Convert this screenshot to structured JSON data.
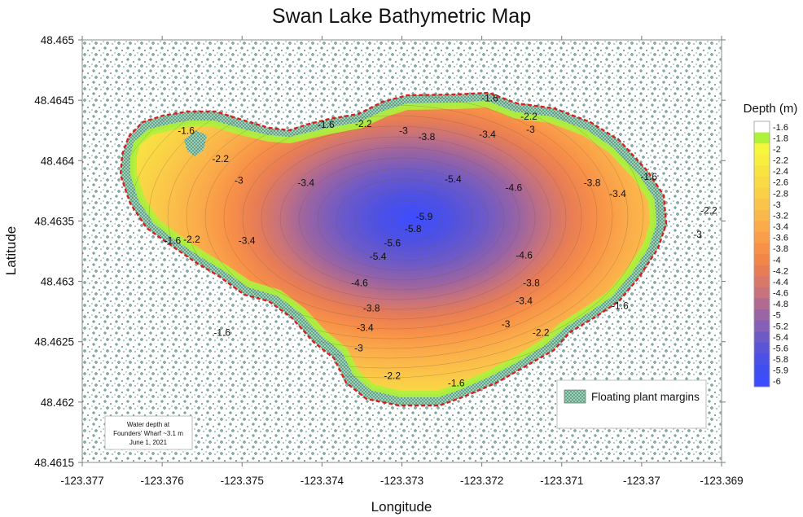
{
  "chart_data": {
    "type": "heatmap",
    "title": "Swan Lake Bathymetric Map",
    "xlabel": "Longitude",
    "ylabel": "Latitude",
    "xlim": [
      -123.377,
      -123.369
    ],
    "ylim": [
      48.4615,
      48.465
    ],
    "x_ticks": [
      "-123.377",
      "-123.376",
      "-123.375",
      "-123.374",
      "-123.373",
      "-123.372",
      "-123.371",
      "-123.37",
      "-123.369"
    ],
    "y_ticks": [
      "48.4615",
      "48.462",
      "48.4625",
      "48.463",
      "48.4635",
      "48.464",
      "48.4645",
      "48.465"
    ],
    "colorbar": {
      "title": "Depth (m)",
      "levels": [
        "-1.6",
        "-1.8",
        "-2",
        "-2.2",
        "-2.4",
        "-2.6",
        "-2.8",
        "-3",
        "-3.2",
        "-3.4",
        "-3.6",
        "-3.8",
        "-4",
        "-4.2",
        "-4.4",
        "-4.6",
        "-4.8",
        "-5",
        "-5.2",
        "-5.4",
        "-5.6",
        "-5.8",
        "-5.9",
        "-6"
      ],
      "colors": [
        "#ffffff",
        "#aef23a",
        "#f6f63c",
        "#f7ee40",
        "#f8e441",
        "#f9da44",
        "#fad047",
        "#fbc449",
        "#fbb84a",
        "#fbab4a",
        "#fa9e49",
        "#f89048",
        "#f38547",
        "#e87d55",
        "#d87868",
        "#c8727c",
        "#b26b90",
        "#9b64a2",
        "#8560b6",
        "#6e5ac7",
        "#5a55d8",
        "#4b50e6",
        "#3f4ef0",
        "#3d4cff"
      ]
    },
    "contour_labels": [
      {
        "text": "-1.6",
        "lon": -123.3757,
        "lat": 48.46422
      },
      {
        "text": "-1.6",
        "lon": -123.37395,
        "lat": 48.46427
      },
      {
        "text": "-2.2",
        "lon": -123.37348,
        "lat": 48.46428
      },
      {
        "text": "-3",
        "lon": -123.37298,
        "lat": 48.46422
      },
      {
        "text": "-3.8",
        "lon": -123.37269,
        "lat": 48.46417
      },
      {
        "text": "-3.4",
        "lon": -123.37193,
        "lat": 48.46419
      },
      {
        "text": "-1.6",
        "lon": -123.3719,
        "lat": 48.46449
      },
      {
        "text": "-2.2",
        "lon": -123.37141,
        "lat": 48.46434
      },
      {
        "text": "-3",
        "lon": -123.37139,
        "lat": 48.46423
      },
      {
        "text": "-2.2",
        "lon": -123.37527,
        "lat": 48.46399
      },
      {
        "text": "-3",
        "lon": -123.37504,
        "lat": 48.46381
      },
      {
        "text": "-3.4",
        "lon": -123.3742,
        "lat": 48.46379
      },
      {
        "text": "-5.4",
        "lon": -123.37236,
        "lat": 48.46382
      },
      {
        "text": "-4.6",
        "lon": -123.3716,
        "lat": 48.46375
      },
      {
        "text": "-3.8",
        "lon": -123.37062,
        "lat": 48.46379
      },
      {
        "text": "-3.4",
        "lon": -123.3703,
        "lat": 48.4637
      },
      {
        "text": "-1.6",
        "lon": -123.36991,
        "lat": 48.46384
      },
      {
        "text": "-2.2",
        "lon": -123.36916,
        "lat": 48.46356
      },
      {
        "text": "-5.9",
        "lon": -123.37272,
        "lat": 48.46351
      },
      {
        "text": "-5.8",
        "lon": -123.37286,
        "lat": 48.46341
      },
      {
        "text": "-3",
        "lon": -123.3693,
        "lat": 48.46336
      },
      {
        "text": "-1.6",
        "lon": -123.37587,
        "lat": 48.46331
      },
      {
        "text": "-2.2",
        "lon": -123.37563,
        "lat": 48.46332
      },
      {
        "text": "-3.4",
        "lon": -123.37494,
        "lat": 48.46331
      },
      {
        "text": "-5.6",
        "lon": -123.37312,
        "lat": 48.46329
      },
      {
        "text": "-5.4",
        "lon": -123.3733,
        "lat": 48.46318
      },
      {
        "text": "-4.6",
        "lon": -123.37147,
        "lat": 48.46319
      },
      {
        "text": "-4.6",
        "lon": -123.37353,
        "lat": 48.46296
      },
      {
        "text": "-3.8",
        "lon": -123.37138,
        "lat": 48.46296
      },
      {
        "text": "-3.4",
        "lon": -123.37147,
        "lat": 48.46281
      },
      {
        "text": "-1.6",
        "lon": -123.37027,
        "lat": 48.46277
      },
      {
        "text": "-3.8",
        "lon": -123.37338,
        "lat": 48.46275
      },
      {
        "text": "-3",
        "lon": -123.3717,
        "lat": 48.46262
      },
      {
        "text": "-3.4",
        "lon": -123.37346,
        "lat": 48.46259
      },
      {
        "text": "-1.6",
        "lon": -123.37525,
        "lat": 48.46255
      },
      {
        "text": "-2.2",
        "lon": -123.37126,
        "lat": 48.46255
      },
      {
        "text": "-3",
        "lon": -123.37354,
        "lat": 48.46242
      },
      {
        "text": "-2.2",
        "lon": -123.37312,
        "lat": 48.46219
      },
      {
        "text": "-1.6",
        "lon": -123.37232,
        "lat": 48.46213
      }
    ],
    "legend": [
      {
        "label": "Floating plant margins",
        "pattern": "stipple-green"
      }
    ],
    "annotation": {
      "lines": [
        "Water depth at",
        "Founders' Wharf ~3.1 m",
        "June 1, 2021"
      ]
    },
    "grid": false
  }
}
